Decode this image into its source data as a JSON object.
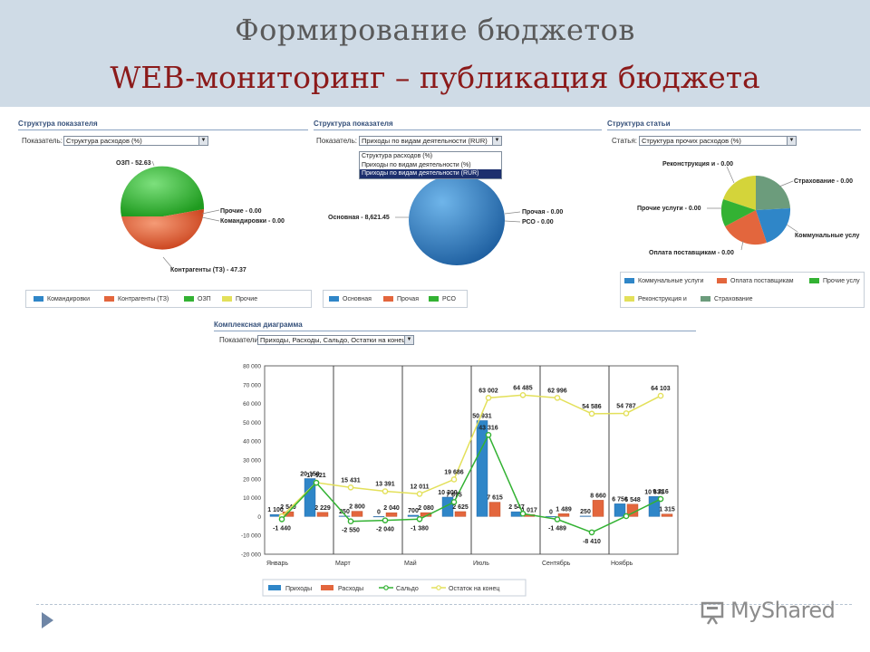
{
  "slide": {
    "title": "Формирование бюджетов",
    "subtitle": "WEB-мониторинг – публикация бюджета"
  },
  "panels": [
    {
      "title": "Структура показателя",
      "field_label": "Показатель:",
      "select_value": "Структура расходов (%)",
      "pie_labels": [
        "ОЗП - 52.63",
        "Прочие - 0.00",
        "Командировки - 0.00",
        "Контрагенты (ТЗ) - 47.37"
      ],
      "legend": [
        "Командировки",
        "Контрагенты (ТЗ)",
        "ОЗП",
        "Прочие"
      ]
    },
    {
      "title": "Структура показателя",
      "field_label": "Показатель:",
      "select_value": "Приходы по видам деятельности (RUR)",
      "dropdown_options": [
        "Структура расходов (%)",
        "Приходы по видам деятельности (%)",
        "Приходы по видам деятельности (RUR)"
      ],
      "pie_labels": [
        "Основная - 8,621.45",
        "Прочая - 0.00",
        "РСО - 0.00"
      ],
      "legend": [
        "Основная",
        "Прочая",
        "РСО"
      ]
    },
    {
      "title": "Структура статьи",
      "field_label": "Статья:",
      "select_value": "Структура прочих расходов (%)",
      "pie_labels": [
        "Реконструкция и - 0.00",
        "Страхование - 0.00",
        "Прочие услуги - 0.00",
        "Коммунальные услу",
        "Оплата поставщикам - 0.00"
      ],
      "legend": [
        "Коммунальные услуги",
        "Оплата поставщикам",
        "Прочие услу",
        "Реконструкция и",
        "Страхование"
      ]
    }
  ],
  "combo": {
    "title": "Комплексная диаграмма",
    "field_label": "Показатели:",
    "select_value": "Приходы, Расходы, Сальдо, Остатки на конец"
  },
  "chart_data": [
    {
      "type": "pie",
      "labels": [
        "ОЗП",
        "Прочие",
        "Командировки",
        "Контрагенты (ТЗ)"
      ],
      "values": [
        52.63,
        0.0,
        0.0,
        47.37
      ]
    },
    {
      "type": "pie",
      "labels": [
        "Основная",
        "Прочая",
        "РСО"
      ],
      "values": [
        8621.45,
        0.0,
        0.0
      ]
    },
    {
      "type": "pie",
      "labels": [
        "Реконструкция и",
        "Страхование",
        "Прочие услуги",
        "Коммунальные услу",
        "Оплата поставщикам"
      ],
      "values": [
        0.0,
        0.0,
        0.0,
        null,
        0.0
      ]
    },
    {
      "type": "bar",
      "x": [
        "Январь",
        "",
        "Март",
        "",
        "Май",
        "",
        "Июль",
        "",
        "Сентябрь",
        "",
        "Ноябрь",
        ""
      ],
      "ylim": [
        -20000,
        80000
      ],
      "yticks": [
        "80 000",
        "70 000",
        "60 000",
        "50 000",
        "40 000",
        "30 000",
        "20 000",
        "10 000",
        "0",
        "-10 000",
        "-20 000"
      ],
      "series": [
        {
          "name": "Приходы",
          "type": "bar",
          "values": [
            1100,
            20150,
            250,
            0,
            700,
            10300,
            50931,
            2547,
            0,
            250,
            6756,
            10631
          ],
          "labels": [
            "1 100",
            "20 150",
            "250",
            "0",
            "700",
            "10 300",
            "50 931",
            "2 547",
            "0",
            "250",
            "6 756",
            "10 631"
          ]
        },
        {
          "name": "Расходы",
          "type": "bar",
          "values": [
            2540,
            2229,
            2800,
            2040,
            2080,
            2625,
            7615,
            1017,
            1489,
            8660,
            6548,
            1315
          ],
          "labels": [
            "2 540",
            "2 229",
            "2 800",
            "2 040",
            "2 080",
            "2 625",
            "7 615",
            "1 017",
            "1 489",
            "8 660",
            "6 548",
            "1 315"
          ]
        },
        {
          "name": "Сальдо",
          "type": "line",
          "values": [
            -1440,
            17921,
            -2550,
            -2040,
            -1380,
            7675,
            43316,
            1530,
            -1489,
            -8410,
            208,
            9316
          ],
          "labels": [
            "-1 440",
            "17 921",
            "-2 550",
            "-2 040",
            "-1 380",
            "7 675",
            "43 316",
            "",
            "-1 489",
            "-8 410",
            "",
            "9 316"
          ]
        },
        {
          "name": "Остаток на конец",
          "type": "line",
          "values": [
            100,
            18021,
            15431,
            13391,
            12011,
            19686,
            63002,
            64485,
            62996,
            54586,
            54787,
            64103
          ],
          "labels": [
            "",
            "",
            "15 431",
            "13 391",
            "12 011",
            "19 686",
            "63 002",
            "64 485",
            "62 996",
            "54 586",
            "54 787",
            "64 103"
          ]
        }
      ],
      "colors": {
        "Приходы": "#2f86c8",
        "Расходы": "#e3663d",
        "Сальдо": "#33b233",
        "Остаток на конец": "#e3e05a"
      }
    }
  ],
  "brand": {
    "text": "MyShared"
  }
}
